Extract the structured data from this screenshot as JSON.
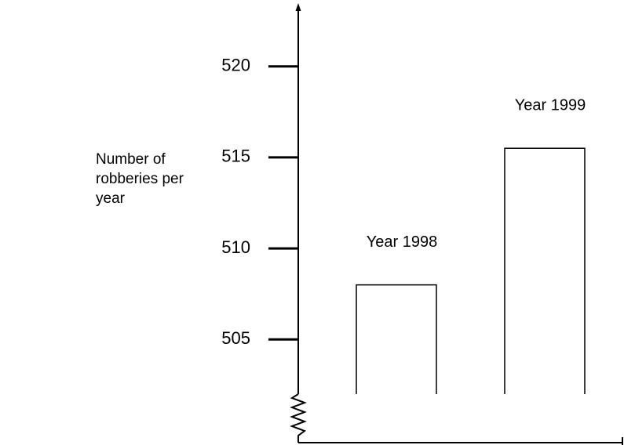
{
  "chart_data": {
    "type": "bar",
    "y_label": "Number of robberies per year",
    "categories": [
      "Year 1998",
      "Year 1999"
    ],
    "values": [
      508,
      515.5
    ],
    "color": "#000000",
    "ylim": [
      502,
      523.3
    ],
    "yticks": [
      505,
      510,
      515,
      520
    ],
    "grid": false
  }
}
